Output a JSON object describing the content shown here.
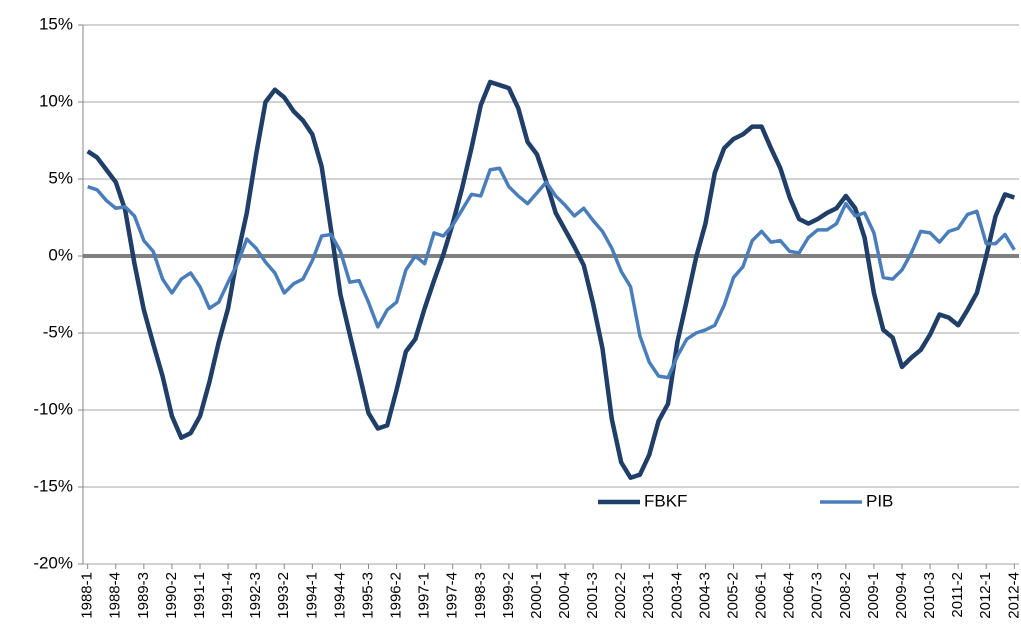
{
  "chart_data": {
    "type": "line",
    "categories": [
      "1988-1",
      null,
      null,
      "1988-4",
      null,
      null,
      "1989-3",
      null,
      null,
      "1990-2",
      null,
      null,
      "1991-1",
      null,
      null,
      "1991-4",
      null,
      null,
      "1992-3",
      null,
      null,
      "1993-2",
      null,
      null,
      "1994-1",
      null,
      null,
      "1994-4",
      null,
      null,
      "1995-3",
      null,
      null,
      "1996-2",
      null,
      null,
      "1997-1",
      null,
      null,
      "1997-4",
      null,
      null,
      "1998-3",
      null,
      null,
      "1999-2",
      null,
      null,
      "2000-1",
      null,
      null,
      "2000-4",
      null,
      null,
      "2001-3",
      null,
      null,
      "2002-2",
      null,
      null,
      "2003-1",
      null,
      null,
      "2003-4",
      null,
      null,
      "2004-3",
      null,
      null,
      "2005-2",
      null,
      null,
      "2006-1",
      null,
      null,
      "2006-4",
      null,
      null,
      "2007-3",
      null,
      null,
      "2008-2",
      null,
      null,
      "2009-1",
      null,
      null,
      "2009-4",
      null,
      null,
      "2010-3",
      null,
      null,
      "2011-2",
      null,
      null,
      "2012-1",
      null,
      null,
      "2012-4"
    ],
    "series": [
      {
        "name": "FBKF",
        "color": "#1f3e68",
        "values": [
          6.8,
          6.4,
          5.6,
          4.8,
          3.0,
          -0.5,
          -3.5,
          -5.7,
          -7.8,
          -10.4,
          -11.8,
          -11.5,
          -10.4,
          -8.2,
          -5.6,
          -3.4,
          0.0,
          2.8,
          6.6,
          10.0,
          10.8,
          10.3,
          9.4,
          8.8,
          7.9,
          5.8,
          1.7,
          -2.5,
          -5.1,
          -7.6,
          -10.2,
          -11.2,
          -11.0,
          -8.7,
          -6.2,
          -5.4,
          -3.4,
          -1.6,
          0.1,
          2.1,
          4.4,
          7.0,
          9.8,
          11.3,
          11.1,
          10.9,
          9.6,
          7.4,
          6.6,
          4.8,
          2.8,
          1.7,
          0.6,
          -0.6,
          -3.1,
          -6.0,
          -10.6,
          -13.4,
          -14.4,
          -14.2,
          -12.9,
          -10.7,
          -9.6,
          -5.6,
          -2.9,
          -0.1,
          2.1,
          5.4,
          7.0,
          7.6,
          7.9,
          8.4,
          8.4,
          7.0,
          5.7,
          3.8,
          2.4,
          2.1,
          2.4,
          2.8,
          3.1,
          3.9,
          3.1,
          1.2,
          -2.4,
          -4.8,
          -5.3,
          -7.2,
          -6.6,
          -6.1,
          -5.1,
          -3.8,
          -4.0,
          -4.5,
          -3.5,
          -2.4,
          0.0,
          2.6,
          4.0,
          3.8
        ]
      },
      {
        "name": "PIB",
        "color": "#4a7ebb",
        "values": [
          4.5,
          4.3,
          3.6,
          3.1,
          3.2,
          2.6,
          1.0,
          0.3,
          -1.5,
          -2.4,
          -1.5,
          -1.1,
          -2.0,
          -3.4,
          -3.0,
          -1.7,
          -0.5,
          1.1,
          0.5,
          -0.4,
          -1.1,
          -2.4,
          -1.8,
          -1.5,
          -0.3,
          1.3,
          1.4,
          0.3,
          -1.7,
          -1.6,
          -3.0,
          -4.6,
          -3.5,
          -3.0,
          -0.9,
          0.0,
          -0.5,
          1.5,
          1.3,
          2.0,
          3.0,
          4.0,
          3.9,
          5.6,
          5.7,
          4.5,
          3.9,
          3.4,
          4.1,
          4.8,
          3.9,
          3.3,
          2.6,
          3.1,
          2.3,
          1.6,
          0.5,
          -1.0,
          -2.0,
          -5.2,
          -6.9,
          -7.8,
          -7.9,
          -6.5,
          -5.4,
          -5.0,
          -4.8,
          -4.5,
          -3.2,
          -1.4,
          -0.7,
          1.0,
          1.6,
          0.9,
          1.0,
          0.3,
          0.2,
          1.2,
          1.7,
          1.7,
          2.1,
          3.4,
          2.6,
          2.8,
          1.5,
          -1.4,
          -1.5,
          -0.9,
          0.2,
          1.6,
          1.5,
          0.9,
          1.6,
          1.8,
          2.7,
          2.9,
          0.8,
          0.8,
          1.4,
          0.4
        ]
      }
    ],
    "ylim": [
      -20,
      15
    ],
    "yticks": [
      {
        "value": -20,
        "label": "-20%"
      },
      {
        "value": -15,
        "label": "-15%"
      },
      {
        "value": -10,
        "label": "-10%"
      },
      {
        "value": -5,
        "label": "-5%"
      },
      {
        "value": 0,
        "label": "0%"
      },
      {
        "value": 5,
        "label": "5%"
      },
      {
        "value": 10,
        "label": "10%"
      },
      {
        "value": 15,
        "label": "15%"
      }
    ],
    "grid": true,
    "zero_line": true,
    "legend": "lower right"
  }
}
